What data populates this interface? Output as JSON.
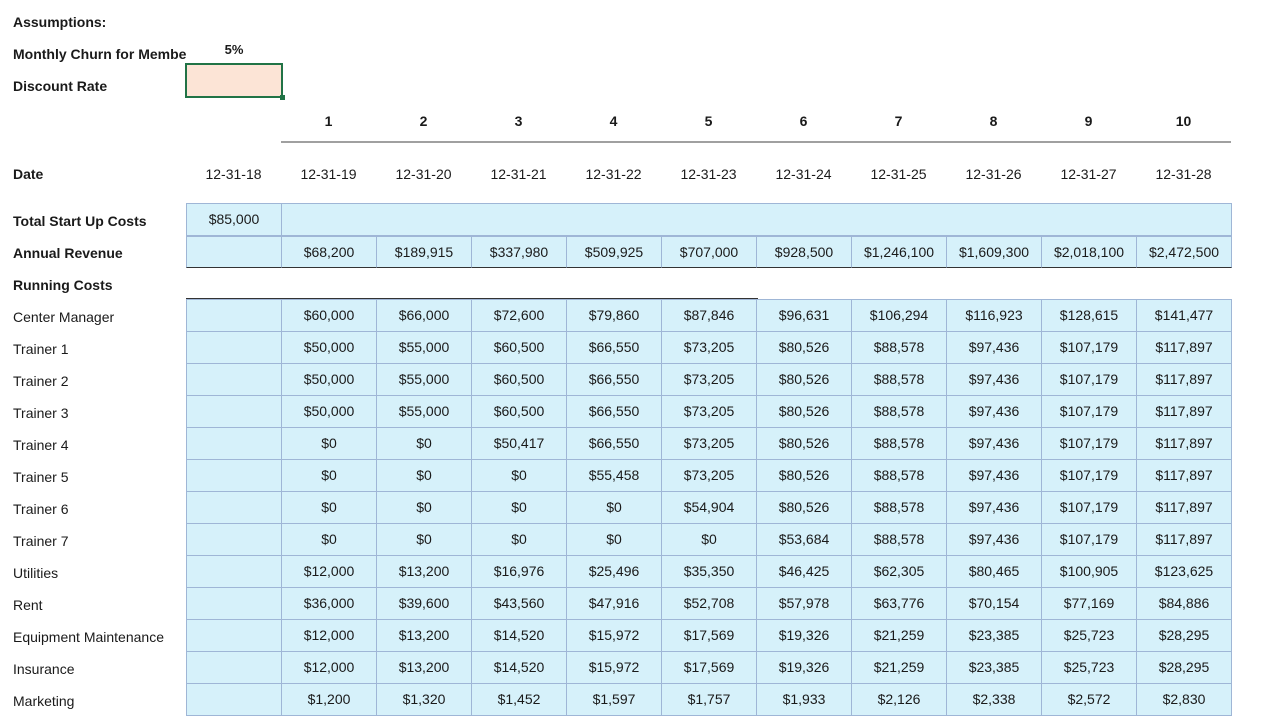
{
  "assumptions": {
    "title": "Assumptions:",
    "churn_label": "Monthly Churn for Membe",
    "churn_value": "5%",
    "discount_label": "Discount Rate",
    "discount_value": ""
  },
  "columns": [
    "1",
    "2",
    "3",
    "4",
    "5",
    "6",
    "7",
    "8",
    "9",
    "10"
  ],
  "date_row": {
    "label": "Date",
    "start": "12-31-18",
    "values": [
      "12-31-19",
      "12-31-20",
      "12-31-21",
      "12-31-22",
      "12-31-23",
      "12-31-24",
      "12-31-25",
      "12-31-26",
      "12-31-27",
      "12-31-28"
    ]
  },
  "startup": {
    "label": "Total Start Up Costs",
    "value": "$85,000"
  },
  "revenue": {
    "label": "Annual Revenue",
    "values": [
      "$68,200",
      "$189,915",
      "$337,980",
      "$509,925",
      "$707,000",
      "$928,500",
      "$1,246,100",
      "$1,609,300",
      "$2,018,100",
      "$2,472,500"
    ]
  },
  "running_costs_label": "Running Costs",
  "cost_rows": [
    {
      "label": "Center Manager",
      "values": [
        "$60,000",
        "$66,000",
        "$72,600",
        "$79,860",
        "$87,846",
        "$96,631",
        "$106,294",
        "$116,923",
        "$128,615",
        "$141,477"
      ]
    },
    {
      "label": "Trainer 1",
      "values": [
        "$50,000",
        "$55,000",
        "$60,500",
        "$66,550",
        "$73,205",
        "$80,526",
        "$88,578",
        "$97,436",
        "$107,179",
        "$117,897"
      ]
    },
    {
      "label": "Trainer 2",
      "values": [
        "$50,000",
        "$55,000",
        "$60,500",
        "$66,550",
        "$73,205",
        "$80,526",
        "$88,578",
        "$97,436",
        "$107,179",
        "$117,897"
      ]
    },
    {
      "label": "Trainer 3",
      "values": [
        "$50,000",
        "$55,000",
        "$60,500",
        "$66,550",
        "$73,205",
        "$80,526",
        "$88,578",
        "$97,436",
        "$107,179",
        "$117,897"
      ]
    },
    {
      "label": "Trainer 4",
      "values": [
        "$0",
        "$0",
        "$50,417",
        "$66,550",
        "$73,205",
        "$80,526",
        "$88,578",
        "$97,436",
        "$107,179",
        "$117,897"
      ]
    },
    {
      "label": "Trainer 5",
      "values": [
        "$0",
        "$0",
        "$0",
        "$55,458",
        "$73,205",
        "$80,526",
        "$88,578",
        "$97,436",
        "$107,179",
        "$117,897"
      ]
    },
    {
      "label": "Trainer 6",
      "values": [
        "$0",
        "$0",
        "$0",
        "$0",
        "$54,904",
        "$80,526",
        "$88,578",
        "$97,436",
        "$107,179",
        "$117,897"
      ]
    },
    {
      "label": "Trainer 7",
      "values": [
        "$0",
        "$0",
        "$0",
        "$0",
        "$0",
        "$53,684",
        "$88,578",
        "$97,436",
        "$107,179",
        "$117,897"
      ]
    },
    {
      "label": "Utilities",
      "values": [
        "$12,000",
        "$13,200",
        "$16,976",
        "$25,496",
        "$35,350",
        "$46,425",
        "$62,305",
        "$80,465",
        "$100,905",
        "$123,625"
      ]
    },
    {
      "label": "Rent",
      "values": [
        "$36,000",
        "$39,600",
        "$43,560",
        "$47,916",
        "$52,708",
        "$57,978",
        "$63,776",
        "$70,154",
        "$77,169",
        "$84,886"
      ]
    },
    {
      "label": "Equipment Maintenance",
      "values": [
        "$12,000",
        "$13,200",
        "$14,520",
        "$15,972",
        "$17,569",
        "$19,326",
        "$21,259",
        "$23,385",
        "$25,723",
        "$28,295"
      ]
    },
    {
      "label": "Insurance",
      "values": [
        "$12,000",
        "$13,200",
        "$14,520",
        "$15,972",
        "$17,569",
        "$19,326",
        "$21,259",
        "$23,385",
        "$25,723",
        "$28,295"
      ]
    },
    {
      "label": "Marketing",
      "values": [
        "$1,200",
        "$1,320",
        "$1,452",
        "$1,597",
        "$1,757",
        "$1,933",
        "$2,126",
        "$2,338",
        "$2,572",
        "$2,830"
      ]
    }
  ]
}
